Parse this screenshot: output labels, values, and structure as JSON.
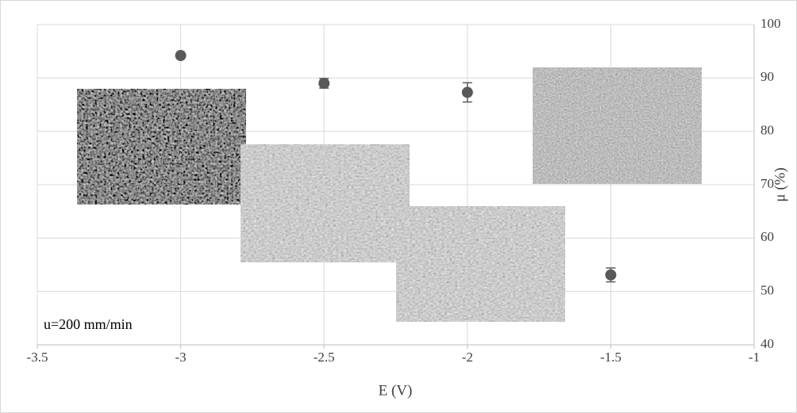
{
  "chart_data": {
    "type": "scatter",
    "x_label": "E (V)",
    "y_label": "μ (%)",
    "annotation": "u=200 mm/min",
    "series": [
      {
        "color": "#595959",
        "x": [
          -3,
          -2.5,
          -2,
          -1.5
        ],
        "values": [
          94.2,
          89,
          87.3,
          53.1
        ],
        "errors": [
          0.4,
          0.9,
          1.8,
          1.3
        ]
      }
    ],
    "xlim": [
      -3.5,
      -1
    ],
    "xticks": [
      -3.5,
      -3,
      -2.5,
      -2,
      -1.5,
      -1
    ],
    "ylim": [
      40,
      100
    ],
    "yticks": [
      40,
      50,
      60,
      70,
      80,
      90,
      100
    ],
    "grid": true
  }
}
